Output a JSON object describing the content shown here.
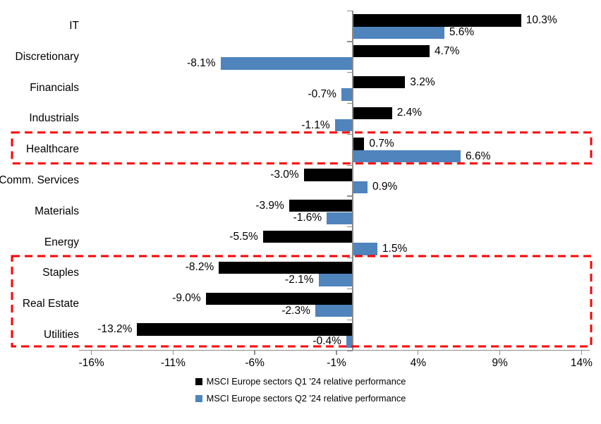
{
  "chart_data": {
    "type": "bar",
    "orientation": "horizontal",
    "title": "",
    "xlabel": "",
    "ylabel": "",
    "categories": [
      "IT",
      "Discretionary",
      "Financials",
      "Industrials",
      "Healthcare",
      "Comm. Services",
      "Materials",
      "Energy",
      "Staples",
      "Real Estate",
      "Utilities"
    ],
    "series": [
      {
        "name": "MSCI Europe sectors Q1 '24 relative performance",
        "color": "#000000",
        "values": [
          10.3,
          4.7,
          3.2,
          2.4,
          0.7,
          -3.0,
          -3.9,
          -5.5,
          -8.2,
          -9.0,
          -13.2
        ],
        "labels": [
          "10.3%",
          "4.7%",
          "3.2%",
          "2.4%",
          "0.7%",
          "-3.0%",
          "-3.9%",
          "-5.5%",
          "-8.2%",
          "-9.0%",
          "-13.2%"
        ]
      },
      {
        "name": "MSCI Europe sectors Q2 '24 relative performance",
        "color": "#4F84BD",
        "values": [
          5.6,
          -8.1,
          -0.7,
          -1.1,
          6.6,
          0.9,
          -1.6,
          1.5,
          -2.1,
          -2.3,
          -0.4
        ],
        "labels": [
          "5.6%",
          "-8.1%",
          "-0.7%",
          "-1.1%",
          "6.6%",
          "0.9%",
          "-1.6%",
          "1.5%",
          "-2.1%",
          "-2.3%",
          "-0.4%"
        ]
      }
    ],
    "xlim": [
      -16.5,
      14.5
    ],
    "xticks": [
      -16,
      -11,
      -6,
      -1,
      4,
      9,
      14
    ],
    "xtick_labels": [
      "-16%",
      "-11%",
      "-6%",
      "-1%",
      "4%",
      "9%",
      "14%"
    ],
    "grid": false,
    "legend_position": "bottom",
    "axis_color": "#8c8c8c",
    "annotations": {
      "highlight_color": "#FF0000",
      "highlight_boxes": [
        {
          "label": "healthcare-highlight",
          "categories": [
            "Healthcare"
          ],
          "row_start": 4,
          "row_end": 4
        },
        {
          "label": "defensives-highlight",
          "categories": [
            "Staples",
            "Real Estate",
            "Utilities"
          ],
          "row_start": 8,
          "row_end": 10
        }
      ]
    }
  }
}
